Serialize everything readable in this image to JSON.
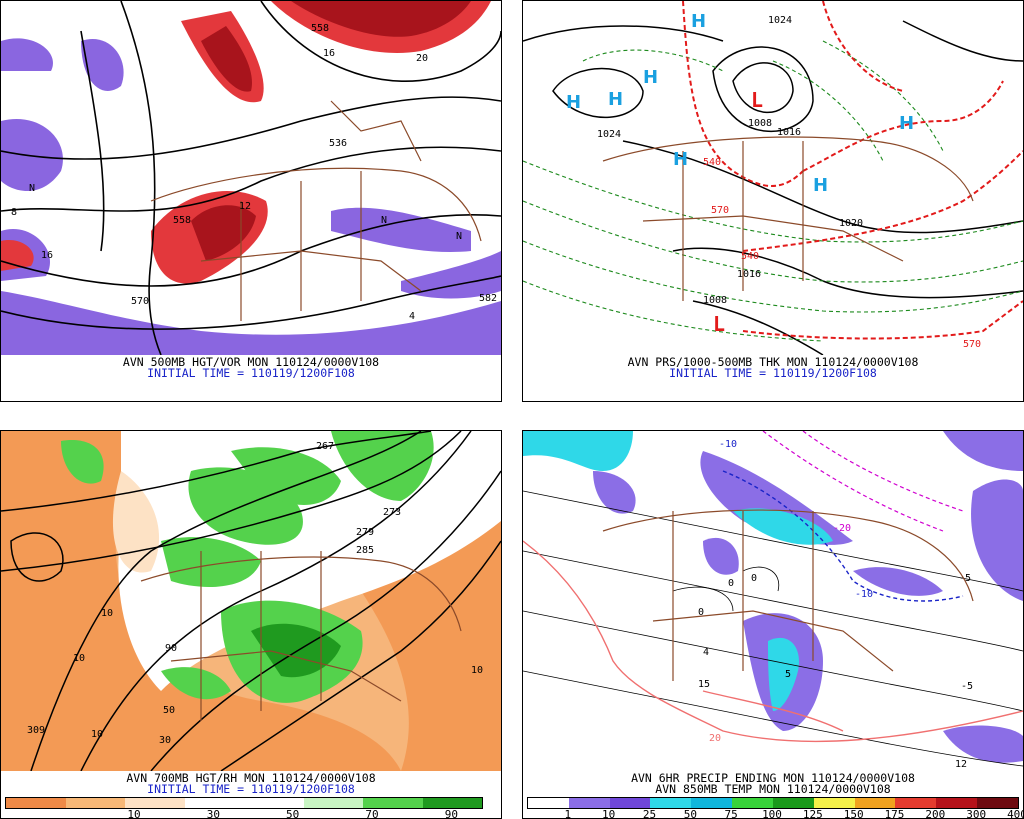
{
  "panels": [
    {
      "caption_line1": "AVN 500MB HGT/VOR MON 110124/0000V108",
      "caption_line2": "INITIAL TIME = 110119/1200F108",
      "contour_labels": [
        "558",
        "16",
        "20",
        "536",
        "12",
        "558",
        "570",
        "16",
        "582",
        "4",
        "8",
        "N",
        "N",
        "N"
      ]
    },
    {
      "caption_line1": "AVN PRS/1000-500MB THK MON 110124/0000V108",
      "caption_line2": "INITIAL TIME = 110119/1200F108",
      "contour_labels": [
        "1024",
        "1008",
        "1016",
        "1024",
        "1016",
        "1008",
        "540",
        "570",
        "540",
        "570",
        "1020"
      ],
      "highs": [
        "H",
        "H",
        "H",
        "H",
        "H",
        "H",
        "H"
      ],
      "lows": [
        "L",
        "L"
      ]
    },
    {
      "caption_line1": "AVN 700MB HGT/RH MON 110124/0000V108",
      "caption_line2": "INITIAL TIME = 110119/1200F108",
      "contour_labels": [
        "267",
        "273",
        "279",
        "285",
        "309",
        "10",
        "10",
        "10",
        "30",
        "50",
        "10",
        "90"
      ],
      "colorbar_ticks": [
        "10",
        "30",
        "50",
        "70",
        "90"
      ],
      "colorbar_colors": [
        "#ef8a47",
        "#f7b877",
        "#fde2c5",
        "#ffffff",
        "#ffffff",
        "#c8f5c3",
        "#54d24c",
        "#1f9a1f"
      ]
    },
    {
      "caption_line1": "AVN 6HR PRECIP ENDING MON 110124/0000V108",
      "caption_line2": "AVN 850MB TEMP MON 110124/0000V108",
      "contour_labels": [
        "-10",
        "-10",
        "-5",
        "-5",
        "0",
        "0",
        "0",
        "4",
        "5",
        "12",
        "15",
        "20",
        "-20"
      ],
      "colorbar_ticks": [
        "1",
        "10",
        "25",
        "50",
        "75",
        "100",
        "125",
        "150",
        "175",
        "200",
        "300",
        "400"
      ],
      "colorbar_colors": [
        "#ffffff",
        "#8b6ee6",
        "#6f47d9",
        "#2fd8e8",
        "#0fb6dc",
        "#38d33a",
        "#1a9a1a",
        "#f4f14a",
        "#f0a21f",
        "#e43b2e",
        "#b5121a",
        "#6e0a10"
      ]
    }
  ]
}
